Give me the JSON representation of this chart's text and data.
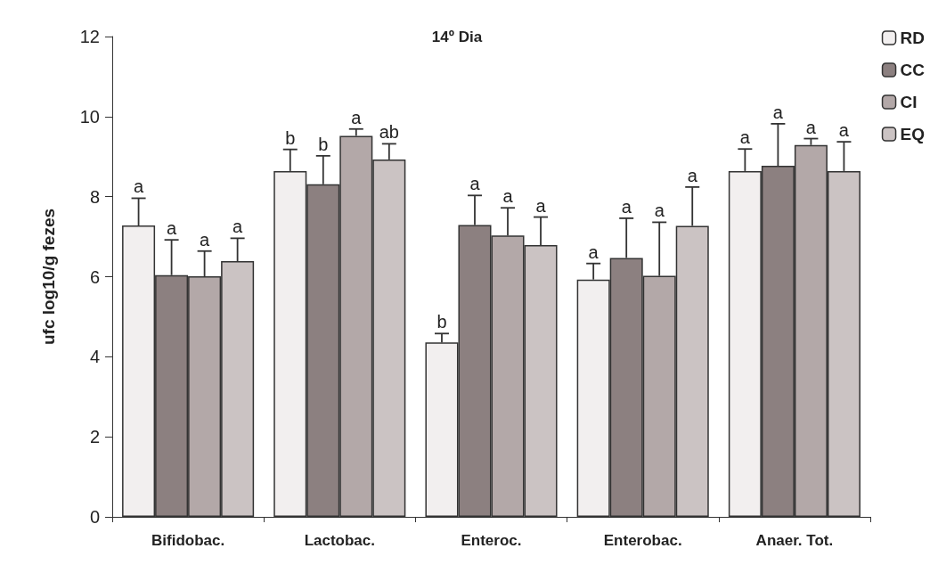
{
  "chart_data": {
    "type": "bar",
    "title": "14º Dia",
    "ylabel": "ufc log10/g fezes",
    "categories": [
      "Bifidobac.",
      "Lactobac.",
      "Enteroc.",
      "Enterobac.",
      "Anaer. Tot."
    ],
    "series": [
      {
        "name": "RD",
        "color": "#f2efef",
        "values": [
          7.28,
          8.64,
          4.36,
          5.93,
          8.64
        ],
        "errors": [
          [
            7.28,
            7.96
          ],
          [
            8.64,
            9.18
          ],
          [
            4.36,
            4.58
          ],
          [
            5.93,
            6.33
          ],
          [
            8.64,
            9.19
          ]
        ],
        "value_labels": [
          "a",
          "b",
          "b",
          "a",
          "a"
        ]
      },
      {
        "name": "CC",
        "color": "#8c8080",
        "values": [
          6.04,
          8.31,
          7.29,
          6.47,
          8.77
        ],
        "errors": [
          [
            6.04,
            6.92
          ],
          [
            8.31,
            9.02
          ],
          [
            7.29,
            8.03
          ],
          [
            6.47,
            7.46
          ],
          [
            8.77,
            9.82
          ]
        ],
        "value_labels": [
          "a",
          "b",
          "a",
          "a",
          "a"
        ]
      },
      {
        "name": "CI",
        "color": "#b3a8a8",
        "values": [
          6.01,
          9.52,
          7.03,
          6.02,
          9.29
        ],
        "errors": [
          [
            6.01,
            6.64
          ],
          [
            9.52,
            9.69
          ],
          [
            7.03,
            7.72
          ],
          [
            6.02,
            7.36
          ],
          [
            9.29,
            9.45
          ]
        ],
        "value_labels": [
          "a",
          "a",
          "a",
          "a",
          "a"
        ]
      },
      {
        "name": "EQ",
        "color": "#cbc3c3",
        "values": [
          6.39,
          8.93,
          6.79,
          7.27,
          8.64
        ],
        "errors": [
          [
            6.39,
            6.96
          ],
          [
            8.93,
            9.32
          ],
          [
            6.79,
            7.49
          ],
          [
            7.27,
            8.24
          ],
          [
            8.64,
            9.37
          ]
        ],
        "value_labels": [
          "a",
          "ab",
          "a",
          "a",
          "a"
        ]
      }
    ],
    "ylim": [
      0,
      12
    ],
    "yticks": [
      0,
      2,
      4,
      6,
      8,
      10,
      12
    ],
    "grid": false,
    "legend": "top right"
  }
}
